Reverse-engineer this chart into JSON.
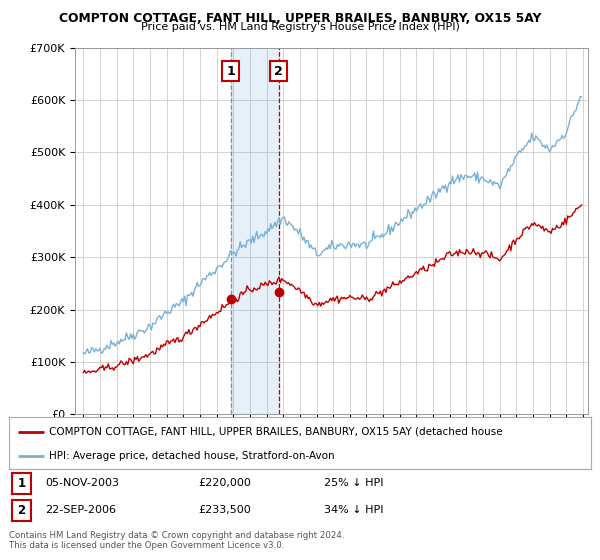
{
  "title": "COMPTON COTTAGE, FANT HILL, UPPER BRAILES, BANBURY, OX15 5AY",
  "subtitle": "Price paid vs. HM Land Registry's House Price Index (HPI)",
  "hpi_color": "#7ab0d8",
  "price_color": "#c00000",
  "marker_color": "#c00000",
  "background_color": "#ffffff",
  "grid_color": "#cccccc",
  "ylim": [
    0,
    700000
  ],
  "yticks": [
    0,
    100000,
    200000,
    300000,
    400000,
    500000,
    600000,
    700000
  ],
  "ytick_labels": [
    "£0",
    "£100K",
    "£200K",
    "£300K",
    "£400K",
    "£500K",
    "£600K",
    "£700K"
  ],
  "legend_label_red": "COMPTON COTTAGE, FANT HILL, UPPER BRAILES, BANBURY, OX15 5AY (detached house",
  "legend_label_blue": "HPI: Average price, detached house, Stratford-on-Avon",
  "transaction1_date": "05-NOV-2003",
  "transaction1_price": 220000,
  "transaction1_pct": "25% ↓ HPI",
  "transaction2_date": "22-SEP-2006",
  "transaction2_price": 233500,
  "transaction2_pct": "34% ↓ HPI",
  "footer": "Contains HM Land Registry data © Crown copyright and database right 2024.\nThis data is licensed under the Open Government Licence v3.0.",
  "vline1_x": 2003.84,
  "vline2_x": 2006.72,
  "marker1_y": 220000,
  "marker2_y": 233500,
  "xmin": 1995,
  "xmax": 2025
}
